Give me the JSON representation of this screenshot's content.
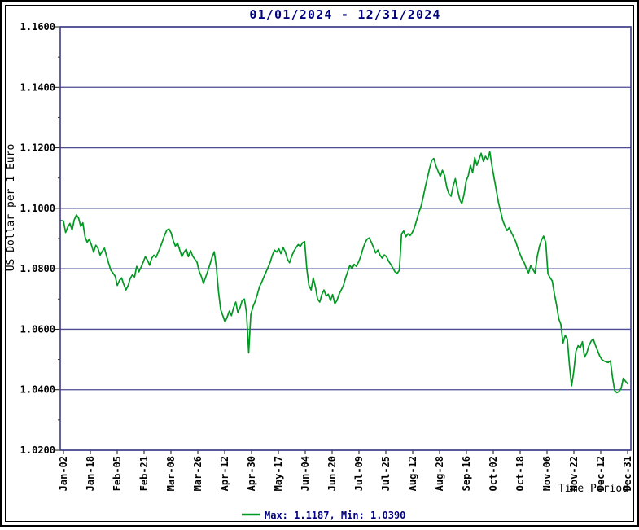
{
  "window": {
    "background": "#ffffff",
    "outer_border_color": "#000000"
  },
  "chart_data": {
    "type": "line",
    "title": "01/01/2024 - 12/31/2024",
    "xlabel": "Time Period",
    "ylabel": "US Dollar per 1 Euro",
    "ylim": [
      1.02,
      1.16
    ],
    "xlim_days": [
      0,
      262
    ],
    "grid": true,
    "grid_orientation": "horizontal",
    "yticks": {
      "labels": [
        "1.0200",
        "1.0400",
        "1.0600",
        "1.0800",
        "1.1000",
        "1.1200",
        "1.1400",
        "1.1600"
      ],
      "values": [
        1.02,
        1.04,
        1.06,
        1.08,
        1.1,
        1.12,
        1.14,
        1.16
      ],
      "minor_values": [
        1.03,
        1.05,
        1.07,
        1.09,
        1.11,
        1.13,
        1.15
      ]
    },
    "xticks": {
      "labels": [
        "Jan-02",
        "Jan-18",
        "Feb-05",
        "Feb-21",
        "Mar-08",
        "Mar-26",
        "Apr-12",
        "Apr-30",
        "May-17",
        "Jun-04",
        "Jun-20",
        "Jul-09",
        "Jul-25",
        "Aug-12",
        "Aug-28",
        "Sep-16",
        "Oct-02",
        "Oct-18",
        "Nov-06",
        "Nov-22",
        "Dec-12",
        "Dec-31"
      ]
    },
    "legend": {
      "label": "Max: 1.1187, Min: 1.0390",
      "position": "bottom-center",
      "swatch": "line"
    },
    "stats": {
      "max": 1.1187,
      "min": 1.039
    },
    "colors": {
      "line": "#009922",
      "grid": "#4c4c96",
      "frame": "#3c3c88",
      "title_text": "#000080",
      "legend_text": "#000080",
      "tick_text": "#000000"
    },
    "series": [
      {
        "name": "US Dollar per 1 Euro",
        "points": [
          [
            -1.5,
            1.096
          ],
          [
            0,
            1.0958
          ],
          [
            1,
            1.092
          ],
          [
            2,
            1.0938
          ],
          [
            3,
            1.095
          ],
          [
            4,
            1.0928
          ],
          [
            5,
            1.0962
          ],
          [
            6,
            1.0978
          ],
          [
            7,
            1.0968
          ],
          [
            8,
            1.094
          ],
          [
            9,
            1.0952
          ],
          [
            10,
            1.0905
          ],
          [
            11,
            1.0888
          ],
          [
            12,
            1.0898
          ],
          [
            13,
            1.0878
          ],
          [
            14,
            1.0855
          ],
          [
            15,
            1.0878
          ],
          [
            16,
            1.0868
          ],
          [
            17,
            1.0845
          ],
          [
            18,
            1.0858
          ],
          [
            19,
            1.0868
          ],
          [
            20,
            1.0842
          ],
          [
            21,
            1.0818
          ],
          [
            22,
            1.0795
          ],
          [
            23,
            1.0786
          ],
          [
            24,
            1.0775
          ],
          [
            25,
            1.0745
          ],
          [
            26,
            1.0762
          ],
          [
            27,
            1.077
          ],
          [
            28,
            1.0748
          ],
          [
            29,
            1.073
          ],
          [
            30,
            1.0745
          ],
          [
            31,
            1.0768
          ],
          [
            32,
            1.078
          ],
          [
            33,
            1.0773
          ],
          [
            34,
            1.0808
          ],
          [
            35,
            1.079
          ],
          [
            36,
            1.0805
          ],
          [
            37,
            1.0822
          ],
          [
            38,
            1.084
          ],
          [
            39,
            1.0828
          ],
          [
            40,
            1.0812
          ],
          [
            41,
            1.0835
          ],
          [
            42,
            1.0845
          ],
          [
            43,
            1.0838
          ],
          [
            44,
            1.0855
          ],
          [
            45,
            1.0872
          ],
          [
            46,
            1.0892
          ],
          [
            47,
            1.0912
          ],
          [
            48,
            1.0928
          ],
          [
            49,
            1.0932
          ],
          [
            50,
            1.0918
          ],
          [
            51,
            1.0892
          ],
          [
            52,
            1.0875
          ],
          [
            53,
            1.0885
          ],
          [
            54,
            1.0862
          ],
          [
            55,
            1.084
          ],
          [
            56,
            1.0855
          ],
          [
            57,
            1.0865
          ],
          [
            58,
            1.084
          ],
          [
            59,
            1.086
          ],
          [
            60,
            1.0842
          ],
          [
            61,
            1.0832
          ],
          [
            62,
            1.0822
          ],
          [
            63,
            1.0792
          ],
          [
            64,
            1.0775
          ],
          [
            65,
            1.0752
          ],
          [
            66,
            1.0772
          ],
          [
            67,
            1.0792
          ],
          [
            68,
            1.0815
          ],
          [
            69,
            1.0838
          ],
          [
            70,
            1.0856
          ],
          [
            71,
            1.0805
          ],
          [
            72,
            1.0725
          ],
          [
            73,
            1.0665
          ],
          [
            74,
            1.0645
          ],
          [
            75,
            1.0624
          ],
          [
            76,
            1.064
          ],
          [
            77,
            1.066
          ],
          [
            78,
            1.0645
          ],
          [
            79,
            1.0672
          ],
          [
            80,
            1.069
          ],
          [
            81,
            1.0655
          ],
          [
            82,
            1.0672
          ],
          [
            83,
            1.0695
          ],
          [
            84,
            1.07
          ],
          [
            85,
            1.0655
          ],
          [
            86,
            1.0522
          ],
          [
            87,
            1.0648
          ],
          [
            88,
            1.0675
          ],
          [
            89,
            1.0692
          ],
          [
            90,
            1.0715
          ],
          [
            91,
            1.074
          ],
          [
            92,
            1.0755
          ],
          [
            93,
            1.0772
          ],
          [
            94,
            1.0788
          ],
          [
            95,
            1.0805
          ],
          [
            96,
            1.0822
          ],
          [
            97,
            1.0845
          ],
          [
            98,
            1.0862
          ],
          [
            99,
            1.0855
          ],
          [
            100,
            1.0866
          ],
          [
            101,
            1.085
          ],
          [
            102,
            1.087
          ],
          [
            103,
            1.0856
          ],
          [
            104,
            1.0832
          ],
          [
            105,
            1.082
          ],
          [
            106,
            1.0842
          ],
          [
            107,
            1.0858
          ],
          [
            108,
            1.087
          ],
          [
            109,
            1.088
          ],
          [
            110,
            1.0874
          ],
          [
            111,
            1.0886
          ],
          [
            112,
            1.089
          ],
          [
            113,
            1.08
          ],
          [
            114,
            1.0745
          ],
          [
            115,
            1.073
          ],
          [
            116,
            1.077
          ],
          [
            117,
            1.074
          ],
          [
            118,
            1.07
          ],
          [
            119,
            1.069
          ],
          [
            120,
            1.0715
          ],
          [
            121,
            1.073
          ],
          [
            122,
            1.071
          ],
          [
            123,
            1.0716
          ],
          [
            124,
            1.0695
          ],
          [
            125,
            1.0715
          ],
          [
            126,
            1.0685
          ],
          [
            127,
            1.0695
          ],
          [
            128,
            1.0716
          ],
          [
            129,
            1.073
          ],
          [
            130,
            1.0745
          ],
          [
            131,
            1.077
          ],
          [
            132,
            1.079
          ],
          [
            133,
            1.0812
          ],
          [
            134,
            1.08
          ],
          [
            135,
            1.0815
          ],
          [
            136,
            1.0808
          ],
          [
            137,
            1.0822
          ],
          [
            138,
            1.084
          ],
          [
            139,
            1.0865
          ],
          [
            140,
            1.0885
          ],
          [
            141,
            1.0898
          ],
          [
            142,
            1.0902
          ],
          [
            143,
            1.0888
          ],
          [
            144,
            1.087
          ],
          [
            145,
            1.0852
          ],
          [
            146,
            1.0862
          ],
          [
            147,
            1.0845
          ],
          [
            148,
            1.0835
          ],
          [
            149,
            1.0846
          ],
          [
            150,
            1.084
          ],
          [
            151,
            1.0825
          ],
          [
            152,
            1.0815
          ],
          [
            153,
            1.0802
          ],
          [
            154,
            1.079
          ],
          [
            155,
            1.0785
          ],
          [
            156,
            1.0795
          ],
          [
            157,
            1.0915
          ],
          [
            158,
            1.0925
          ],
          [
            159,
            1.0906
          ],
          [
            160,
            1.0916
          ],
          [
            161,
            1.091
          ],
          [
            162,
            1.092
          ],
          [
            163,
            1.0936
          ],
          [
            164,
            1.096
          ],
          [
            165,
            1.0985
          ],
          [
            166,
            1.1005
          ],
          [
            167,
            1.1035
          ],
          [
            168,
            1.107
          ],
          [
            169,
            1.11
          ],
          [
            170,
            1.1132
          ],
          [
            171,
            1.1158
          ],
          [
            172,
            1.1165
          ],
          [
            173,
            1.114
          ],
          [
            174,
            1.1122
          ],
          [
            175,
            1.1105
          ],
          [
            176,
            1.1126
          ],
          [
            177,
            1.1108
          ],
          [
            178,
            1.107
          ],
          [
            179,
            1.1048
          ],
          [
            180,
            1.104
          ],
          [
            181,
            1.1075
          ],
          [
            182,
            1.1098
          ],
          [
            183,
            1.1062
          ],
          [
            184,
            1.103
          ],
          [
            185,
            1.1015
          ],
          [
            186,
            1.1045
          ],
          [
            187,
            1.109
          ],
          [
            188,
            1.1108
          ],
          [
            189,
            1.1142
          ],
          [
            190,
            1.1118
          ],
          [
            191,
            1.1168
          ],
          [
            192,
            1.1142
          ],
          [
            193,
            1.1162
          ],
          [
            194,
            1.1182
          ],
          [
            195,
            1.1155
          ],
          [
            196,
            1.1172
          ],
          [
            197,
            1.116
          ],
          [
            198,
            1.1187
          ],
          [
            199,
            1.114
          ],
          [
            200,
            1.11
          ],
          [
            201,
            1.106
          ],
          [
            202,
            1.102
          ],
          [
            203,
            1.099
          ],
          [
            204,
            1.096
          ],
          [
            205,
            1.0942
          ],
          [
            206,
            1.0926
          ],
          [
            207,
            1.0936
          ],
          [
            208,
            1.092
          ],
          [
            209,
            1.0906
          ],
          [
            210,
            1.089
          ],
          [
            211,
            1.0868
          ],
          [
            212,
            1.085
          ],
          [
            213,
            1.0832
          ],
          [
            214,
            1.082
          ],
          [
            215,
            1.08
          ],
          [
            216,
            1.0786
          ],
          [
            217,
            1.0811
          ],
          [
            218,
            1.0798
          ],
          [
            219,
            1.0786
          ],
          [
            220,
            1.084
          ],
          [
            221,
            1.0873
          ],
          [
            222,
            1.0895
          ],
          [
            223,
            1.0908
          ],
          [
            224,
            1.0886
          ],
          [
            225,
            1.0784
          ],
          [
            226,
            1.077
          ],
          [
            227,
            1.076
          ],
          [
            228,
            1.0716
          ],
          [
            229,
            1.068
          ],
          [
            230,
            1.0635
          ],
          [
            231,
            1.0616
          ],
          [
            232,
            1.0554
          ],
          [
            233,
            1.058
          ],
          [
            234,
            1.0568
          ],
          [
            235,
            1.048
          ],
          [
            236,
            1.0413
          ],
          [
            237,
            1.0462
          ],
          [
            238,
            1.0527
          ],
          [
            239,
            1.0546
          ],
          [
            240,
            1.0538
          ],
          [
            241,
            1.0559
          ],
          [
            242,
            1.0508
          ],
          [
            243,
            1.052
          ],
          [
            244,
            1.0545
          ],
          [
            245,
            1.056
          ],
          [
            246,
            1.0568
          ],
          [
            247,
            1.0548
          ],
          [
            248,
            1.053
          ],
          [
            249,
            1.0512
          ],
          [
            250,
            1.05
          ],
          [
            251,
            1.0495
          ],
          [
            252,
            1.0492
          ],
          [
            253,
            1.049
          ],
          [
            254,
            1.0496
          ],
          [
            255,
            1.044
          ],
          [
            256,
            1.0397
          ],
          [
            257,
            1.039
          ],
          [
            258,
            1.0394
          ],
          [
            259,
            1.0405
          ],
          [
            260,
            1.0438
          ],
          [
            261,
            1.0428
          ],
          [
            262,
            1.042
          ]
        ]
      }
    ]
  }
}
